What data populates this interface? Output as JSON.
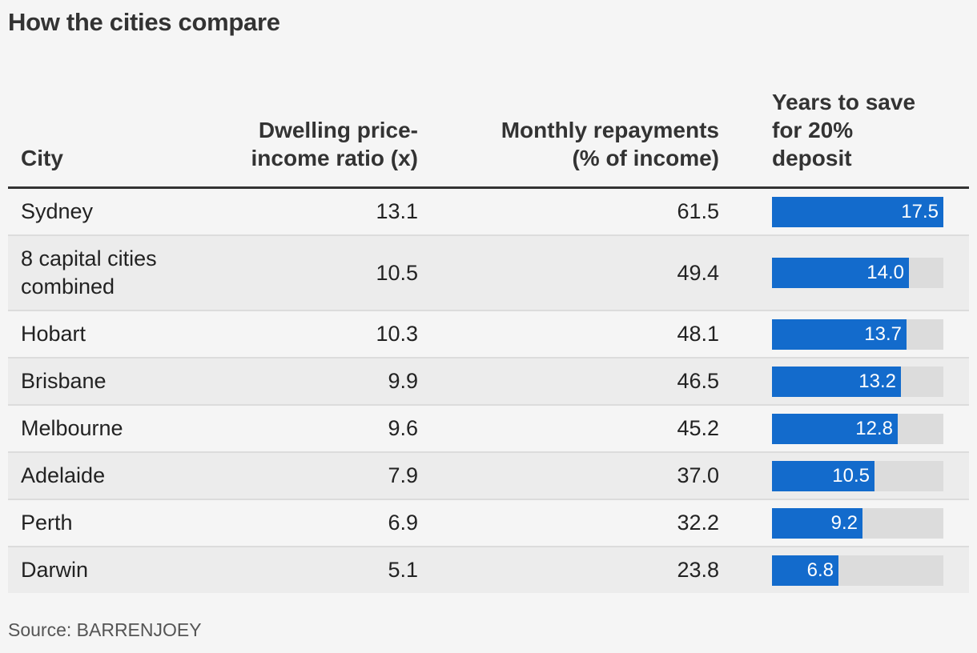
{
  "title": "How the cities compare",
  "source": "Source: BARRENJOEY",
  "colors": {
    "bar": "#136bcc",
    "track": "#dcdcdc",
    "rule": "#333333"
  },
  "headers": {
    "city": "City",
    "ratio_line1": "Dwelling price-",
    "ratio_line2": "income ratio (x)",
    "repay_line1": "Monthly repayments",
    "repay_line2": "(% of income)",
    "years_line1": "Years to save",
    "years_line2": "for 20%",
    "years_line3": "deposit"
  },
  "chart_data": {
    "type": "table",
    "columns": [
      "City",
      "Dwelling price-income ratio (x)",
      "Monthly repayments (% of income)",
      "Years to save for 20% deposit"
    ],
    "bar_max": 17.5,
    "rows": [
      {
        "city_line1": "Sydney",
        "city_line2": "",
        "ratio": "13.1",
        "repay": "61.5",
        "years": 17.5,
        "years_label": "17.5"
      },
      {
        "city_line1": "8 capital cities",
        "city_line2": "combined",
        "ratio": "10.5",
        "repay": "49.4",
        "years": 14.0,
        "years_label": "14.0"
      },
      {
        "city_line1": "Hobart",
        "city_line2": "",
        "ratio": "10.3",
        "repay": "48.1",
        "years": 13.7,
        "years_label": "13.7"
      },
      {
        "city_line1": "Brisbane",
        "city_line2": "",
        "ratio": "9.9",
        "repay": "46.5",
        "years": 13.2,
        "years_label": "13.2"
      },
      {
        "city_line1": "Melbourne",
        "city_line2": "",
        "ratio": "9.6",
        "repay": "45.2",
        "years": 12.8,
        "years_label": "12.8"
      },
      {
        "city_line1": "Adelaide",
        "city_line2": "",
        "ratio": "7.9",
        "repay": "37.0",
        "years": 10.5,
        "years_label": "10.5"
      },
      {
        "city_line1": "Perth",
        "city_line2": "",
        "ratio": "6.9",
        "repay": "32.2",
        "years": 9.2,
        "years_label": "9.2"
      },
      {
        "city_line1": "Darwin",
        "city_line2": "",
        "ratio": "5.1",
        "repay": "23.8",
        "years": 6.8,
        "years_label": "6.8"
      }
    ]
  }
}
